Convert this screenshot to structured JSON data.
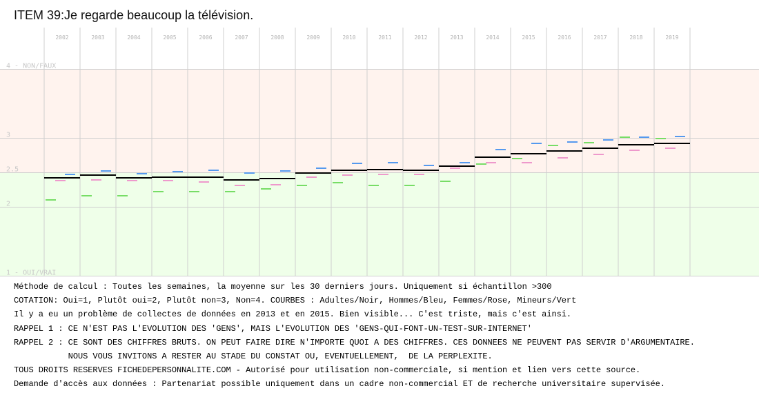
{
  "title": "ITEM 39:Je regarde beaucoup la télévision.",
  "chart_data": {
    "type": "line",
    "categories": [
      "2002",
      "2003",
      "2004",
      "2005",
      "2006",
      "2007",
      "2008",
      "2009",
      "2010",
      "2011",
      "2012",
      "2013",
      "2014",
      "2015",
      "2016",
      "2017",
      "2018",
      "2019"
    ],
    "y_ticks": [
      {
        "value": 4,
        "label": "4 - NON/FAUX"
      },
      {
        "value": 3,
        "label": "3"
      },
      {
        "value": 2.5,
        "label": "2.5"
      },
      {
        "value": 2,
        "label": "2"
      },
      {
        "value": 1,
        "label": "1 - OUI/VRAI"
      }
    ],
    "ylim": [
      1,
      4
    ],
    "grid": true,
    "background": {
      "above_2_5": "#fff3ee",
      "below_2_5": "#efffe9"
    },
    "series": [
      {
        "name": "Adultes",
        "color": "#000000",
        "values": [
          2.42,
          2.46,
          2.42,
          2.43,
          2.43,
          2.39,
          2.41,
          2.49,
          2.53,
          2.54,
          2.53,
          2.59,
          2.72,
          2.77,
          2.81,
          2.85,
          2.9,
          2.92
        ]
      },
      {
        "name": "Hommes",
        "color": "#5599ee",
        "values": [
          2.47,
          2.52,
          2.48,
          2.51,
          2.53,
          2.49,
          2.52,
          2.56,
          2.63,
          2.64,
          2.6,
          2.64,
          2.83,
          2.92,
          2.94,
          2.97,
          3.01,
          3.02
        ]
      },
      {
        "name": "Femmes",
        "color": "#ee99cc",
        "values": [
          2.38,
          2.39,
          2.38,
          2.38,
          2.36,
          2.31,
          2.32,
          2.43,
          2.46,
          2.47,
          2.47,
          2.56,
          2.64,
          2.64,
          2.71,
          2.76,
          2.82,
          2.85
        ]
      },
      {
        "name": "Mineurs",
        "color": "#77dd66",
        "values": [
          2.1,
          2.16,
          2.16,
          2.22,
          2.22,
          2.22,
          2.26,
          2.31,
          2.35,
          2.31,
          2.31,
          2.37,
          2.62,
          2.7,
          2.89,
          2.93,
          3.01,
          2.99
        ]
      }
    ]
  },
  "notes": [
    "Méthode de calcul : Toutes les semaines, la moyenne sur les 30 derniers jours. Uniquement si échantillon >300",
    "COTATION: Oui=1, Plutôt oui=2, Plutôt non=3, Non=4. COURBES : Adultes/Noir, Hommes/Bleu, Femmes/Rose, Mineurs/Vert",
    "Il y a eu un problème de collectes de données en 2013 et en 2015. Bien visible... C'est triste, mais c'est ainsi.",
    "RAPPEL 1 : CE N'EST PAS L'EVOLUTION DES 'GENS', MAIS L'EVOLUTION DES 'GENS-QUI-FONT-UN-TEST-SUR-INTERNET'",
    "RAPPEL 2 : CE SONT DES CHIFFRES BRUTS. ON PEUT FAIRE DIRE N'IMPORTE QUOI A DES CHIFFRES. CES DONNEES NE PEUVENT PAS SERVIR D'ARGUMENTAIRE.",
    "           NOUS VOUS INVITONS A RESTER AU STADE DU CONSTAT OU, EVENTUELLEMENT,  DE LA PERPLEXITE.",
    "TOUS DROITS RESERVES FICHEDEPERSONNALITE.COM - Autorisé pour utilisation non-commerciale, si mention et lien vers cette source.",
    "Demande d'accès aux données : Partenariat possible uniquement dans un cadre non-commercial ET de recherche universitaire supervisée."
  ]
}
